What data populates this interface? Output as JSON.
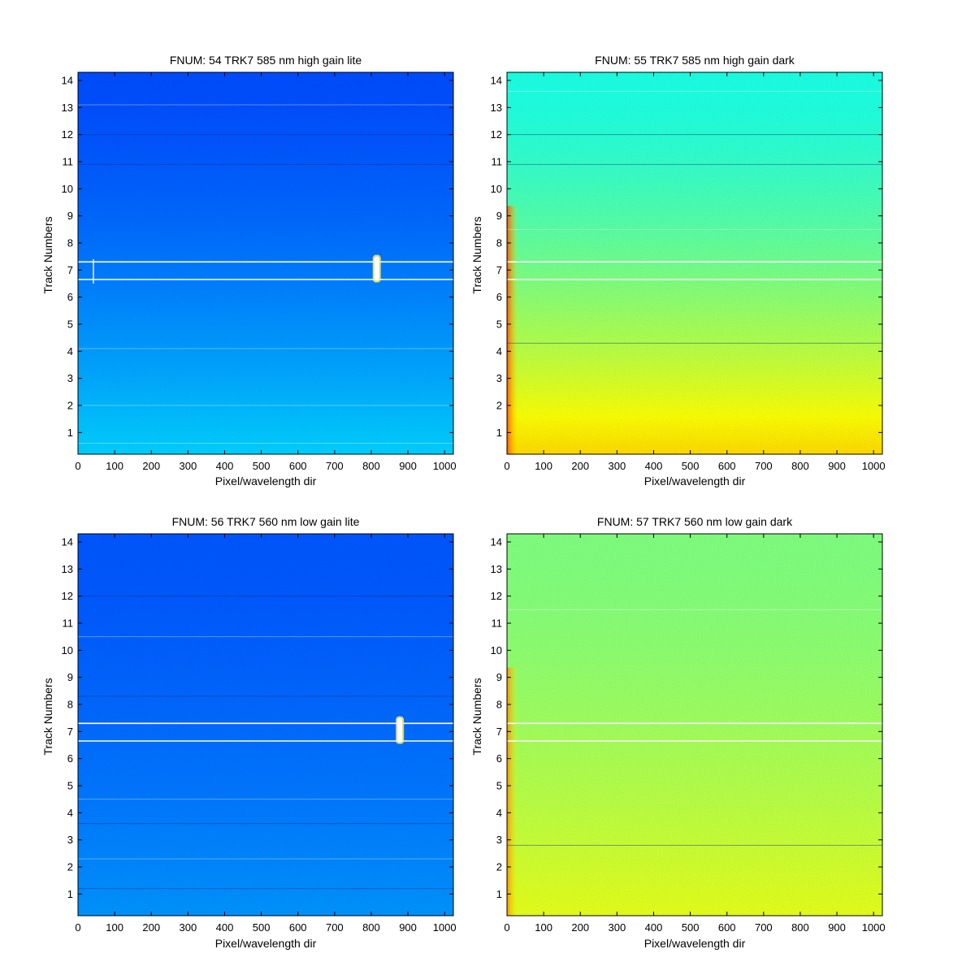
{
  "chart_data": [
    {
      "type": "heatmap",
      "title": "FNUM: 54 TRK7 585 nm high gain lite",
      "xlabel": "Pixel/wavelength dir",
      "ylabel": "Track Numbers",
      "xlim": [
        0,
        1024
      ],
      "ylim": [
        0.2,
        14.3
      ],
      "xticks": [
        "0",
        "100",
        "200",
        "300",
        "400",
        "500",
        "600",
        "700",
        "800",
        "900",
        "1000"
      ],
      "yticks": [
        "1",
        "2",
        "3",
        "4",
        "5",
        "6",
        "7",
        "8",
        "9",
        "10",
        "11",
        "12",
        "13",
        "14"
      ],
      "colormap": "jet",
      "level_top": 0.2,
      "level_bottom": 0.33,
      "marker_lines_y": [
        6.65,
        7.3
      ],
      "hot_spots": [
        {
          "x": 815,
          "y_from": 6.6,
          "y_to": 7.5
        }
      ],
      "faint_marks": [
        {
          "x": 42,
          "y_from": 6.5,
          "y_to": 7.4
        }
      ],
      "bright_rows": [
        13.1,
        4.1,
        2.0,
        0.6
      ],
      "dark_rows": [
        12.0,
        10.9
      ]
    },
    {
      "type": "heatmap",
      "title": "FNUM: 55 TRK7 585 nm high gain dark",
      "xlabel": "Pixel/wavelength dir",
      "ylabel": "Track Numbers",
      "xlim": [
        0,
        1024
      ],
      "ylim": [
        0.2,
        14.3
      ],
      "xticks": [
        "0",
        "100",
        "200",
        "300",
        "400",
        "500",
        "600",
        "700",
        "800",
        "900",
        "1000"
      ],
      "yticks": [
        "1",
        "2",
        "3",
        "4",
        "5",
        "6",
        "7",
        "8",
        "9",
        "10",
        "11",
        "12",
        "13",
        "14"
      ],
      "colormap": "jet",
      "level_top": 0.4,
      "level_bottom": 0.66,
      "marker_lines_y": [
        6.65,
        7.3
      ],
      "hot_spots": [],
      "faint_marks": [],
      "bright_rows": [
        13.6,
        8.5
      ],
      "dark_rows": [
        12.0,
        10.9,
        4.3
      ]
    },
    {
      "type": "heatmap",
      "title": "FNUM: 56 TRK7 560 nm low gain lite",
      "xlabel": "Pixel/wavelength dir",
      "ylabel": "Track Numbers",
      "xlim": [
        0,
        1024
      ],
      "ylim": [
        0.2,
        14.3
      ],
      "xticks": [
        "0",
        "100",
        "200",
        "300",
        "400",
        "500",
        "600",
        "700",
        "800",
        "900",
        "1000"
      ],
      "yticks": [
        "1",
        "2",
        "3",
        "4",
        "5",
        "6",
        "7",
        "8",
        "9",
        "10",
        "11",
        "12",
        "13",
        "14"
      ],
      "colormap": "jet",
      "level_top": 0.21,
      "level_bottom": 0.27,
      "marker_lines_y": [
        6.65,
        7.3
      ],
      "hot_spots": [
        {
          "x": 878,
          "y_from": 6.6,
          "y_to": 7.5
        }
      ],
      "faint_marks": [],
      "bright_rows": [
        10.5,
        4.5,
        2.3
      ],
      "dark_rows": [
        12.0,
        8.3,
        3.6,
        1.2
      ]
    },
    {
      "type": "heatmap",
      "title": "FNUM: 57 TRK7 560 nm low gain dark",
      "xlabel": "Pixel/wavelength dir",
      "ylabel": "Track Numbers",
      "xlim": [
        0,
        1024
      ],
      "ylim": [
        0.2,
        14.3
      ],
      "xticks": [
        "0",
        "100",
        "200",
        "300",
        "400",
        "500",
        "600",
        "700",
        "800",
        "900",
        "1000"
      ],
      "yticks": [
        "1",
        "2",
        "3",
        "4",
        "5",
        "6",
        "7",
        "8",
        "9",
        "10",
        "11",
        "12",
        "13",
        "14"
      ],
      "colormap": "jet",
      "level_top": 0.5,
      "level_bottom": 0.6,
      "marker_lines_y": [
        6.65,
        7.3
      ],
      "hot_spots": [],
      "faint_marks": [],
      "bright_rows": [
        11.5
      ],
      "dark_rows": [
        2.8
      ]
    }
  ]
}
